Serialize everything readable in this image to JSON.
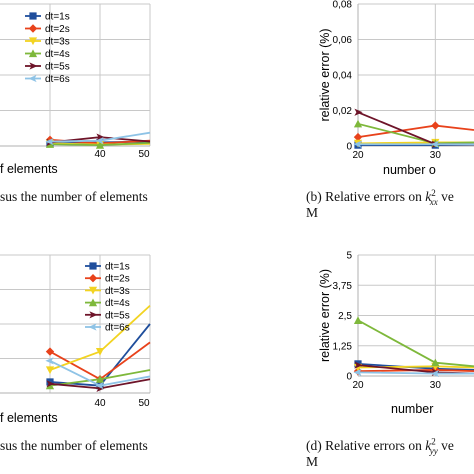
{
  "chart_data": [
    {
      "id": "a",
      "type": "line",
      "x": [
        30,
        40,
        50
      ],
      "xticks": [
        "40",
        "50"
      ],
      "xlabel": "f elements",
      "ylabel": "",
      "yticks": [],
      "legend": "top-right",
      "series": [
        {
          "name": "dt=1s",
          "color": "#1f4e9c",
          "marker": "square",
          "values": [
            0.0015,
            0.002,
            0.0025
          ]
        },
        {
          "name": "dt=2s",
          "color": "#e8421b",
          "marker": "diamond",
          "values": [
            0.0035,
            0.0015,
            0.003
          ]
        },
        {
          "name": "dt=3s",
          "color": "#f2d321",
          "marker": "triangle-down",
          "values": [
            0.0015,
            0.0008,
            0.0012
          ]
        },
        {
          "name": "dt=4s",
          "color": "#7eb83b",
          "marker": "triangle-up",
          "values": [
            0.001,
            0.0005,
            0.0018
          ]
        },
        {
          "name": "dt=5s",
          "color": "#6e1429",
          "marker": "arrow-right",
          "values": [
            0.002,
            0.005,
            0.0025
          ]
        },
        {
          "name": "dt=6s",
          "color": "#8ec3e6",
          "marker": "arrow-left",
          "values": [
            0.0025,
            0.003,
            0.0075
          ]
        }
      ]
    },
    {
      "id": "b",
      "type": "line",
      "x": [
        20,
        30,
        35
      ],
      "xticks": [
        "20",
        "30"
      ],
      "xlabel": "number o",
      "ylabel": "relative error (%)",
      "yticks": [
        "0",
        "0,02",
        "0,04",
        "0,06",
        "0,08"
      ],
      "ylim": [
        0,
        0.08
      ],
      "series": [
        {
          "name": "dt=1s",
          "color": "#1f4e9c",
          "marker": "square",
          "values": [
            0.0005,
            0.0005,
            0.0008
          ]
        },
        {
          "name": "dt=2s",
          "color": "#e8421b",
          "marker": "diamond",
          "values": [
            0.005,
            0.0115,
            0.009
          ]
        },
        {
          "name": "dt=3s",
          "color": "#f2d321",
          "marker": "triangle-down",
          "values": [
            0.0015,
            0.002,
            0.002
          ]
        },
        {
          "name": "dt=4s",
          "color": "#7eb83b",
          "marker": "triangle-up",
          "values": [
            0.0125,
            0.0015,
            0.002
          ]
        },
        {
          "name": "dt=5s",
          "color": "#6e1429",
          "marker": "arrow-right",
          "values": [
            0.019,
            0.001,
            0.001
          ]
        },
        {
          "name": "dt=6s",
          "color": "#8ec3e6",
          "marker": "arrow-left",
          "values": [
            0.001,
            0.001,
            0.001
          ]
        }
      ]
    },
    {
      "id": "c",
      "type": "line",
      "x": [
        30,
        40,
        50
      ],
      "xticks": [
        "40",
        "50"
      ],
      "xlabel": "f elements",
      "ylabel": "",
      "yticks": [],
      "legend": "top-right",
      "series": [
        {
          "name": "dt=1s",
          "color": "#1f4e9c",
          "marker": "square",
          "values": [
            0.0012,
            0.0008,
            0.0075
          ]
        },
        {
          "name": "dt=2s",
          "color": "#e8421b",
          "marker": "diamond",
          "values": [
            0.0045,
            0.0015,
            0.0055
          ]
        },
        {
          "name": "dt=3s",
          "color": "#f2d321",
          "marker": "triangle-down",
          "values": [
            0.0025,
            0.0045,
            0.0095
          ]
        },
        {
          "name": "dt=4s",
          "color": "#7eb83b",
          "marker": "triangle-up",
          "values": [
            0.0008,
            0.0015,
            0.0025
          ]
        },
        {
          "name": "dt=5s",
          "color": "#6e1429",
          "marker": "arrow-right",
          "values": [
            0.001,
            0.0005,
            0.0015
          ]
        },
        {
          "name": "dt=6s",
          "color": "#8ec3e6",
          "marker": "arrow-left",
          "values": [
            0.0035,
            0.0008,
            0.0018
          ]
        }
      ]
    },
    {
      "id": "d",
      "type": "line",
      "x": [
        20,
        30,
        35
      ],
      "xticks": [
        "20",
        "30"
      ],
      "xlabel": "number",
      "ylabel": "relative error (%)",
      "yticks": [
        "0",
        "1,25",
        "2,5",
        "3,75",
        "5"
      ],
      "ylim": [
        0,
        5
      ],
      "series": [
        {
          "name": "dt=1s",
          "color": "#1f4e9c",
          "marker": "square",
          "values": [
            0.5,
            0.3,
            0.25
          ]
        },
        {
          "name": "dt=2s",
          "color": "#e8421b",
          "marker": "diamond",
          "values": [
            0.2,
            0.25,
            0.2
          ]
        },
        {
          "name": "dt=3s",
          "color": "#f2d321",
          "marker": "triangle-down",
          "values": [
            0.35,
            0.4,
            0.35
          ]
        },
        {
          "name": "dt=4s",
          "color": "#7eb83b",
          "marker": "triangle-up",
          "values": [
            2.3,
            0.55,
            0.4
          ]
        },
        {
          "name": "dt=5s",
          "color": "#6e1429",
          "marker": "arrow-right",
          "values": [
            0.45,
            0.15,
            0.1
          ]
        },
        {
          "name": "dt=6s",
          "color": "#8ec3e6",
          "marker": "arrow-left",
          "values": [
            0.15,
            0.1,
            0.1
          ]
        }
      ]
    }
  ],
  "captions": {
    "a": "sus the number of elements",
    "b_line1_pre": "(b) Relative errors on ",
    "b_k": "k",
    "b_sup": "2",
    "b_sub": "xx",
    "b_line1_post": " ve",
    "b_line2": "M",
    "c": "sus the number of elements",
    "d_line1_pre": "(d) Relative errors on ",
    "d_k": "k",
    "d_sup": "2",
    "d_sub": "yy",
    "d_line1_post": " ve",
    "d_line2": "M"
  }
}
